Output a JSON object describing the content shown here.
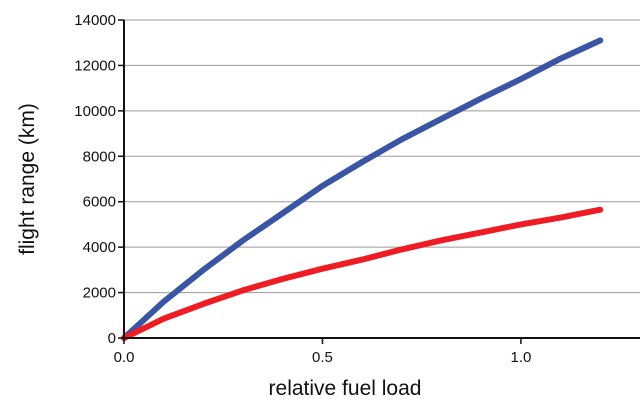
{
  "chart_data": {
    "type": "line",
    "title": "",
    "xlabel": "relative fuel load",
    "ylabel": "flight range (km)",
    "xlim": [
      0,
      1.3
    ],
    "ylim": [
      0,
      14000
    ],
    "x_ticks": [
      0,
      0.5,
      1.0
    ],
    "x_tick_labels": [
      "0.0",
      "0.5",
      "1.0"
    ],
    "y_ticks": [
      0,
      2000,
      4000,
      6000,
      8000,
      10000,
      12000,
      14000
    ],
    "y_tick_labels": [
      "0",
      "2000",
      "4000",
      "6000",
      "8000",
      "10000",
      "12000",
      "14000"
    ],
    "grid": "horizontal",
    "legend": "none",
    "series": [
      {
        "color": "#3a55a4",
        "x": [
          0,
          0.1,
          0.2,
          0.3,
          0.4,
          0.5,
          0.6,
          0.7,
          0.8,
          0.9,
          1.0,
          1.1,
          1.2
        ],
        "y": [
          0,
          1600,
          3000,
          4300,
          5500,
          6700,
          7750,
          8750,
          9650,
          10550,
          11400,
          12300,
          13100
        ]
      },
      {
        "color": "#ee1c24",
        "x": [
          0,
          0.1,
          0.2,
          0.3,
          0.4,
          0.5,
          0.6,
          0.7,
          0.8,
          0.9,
          1.0,
          1.1,
          1.2
        ],
        "y": [
          0,
          850,
          1500,
          2100,
          2600,
          3050,
          3450,
          3900,
          4300,
          4650,
          5000,
          5300,
          5650
        ]
      }
    ]
  }
}
